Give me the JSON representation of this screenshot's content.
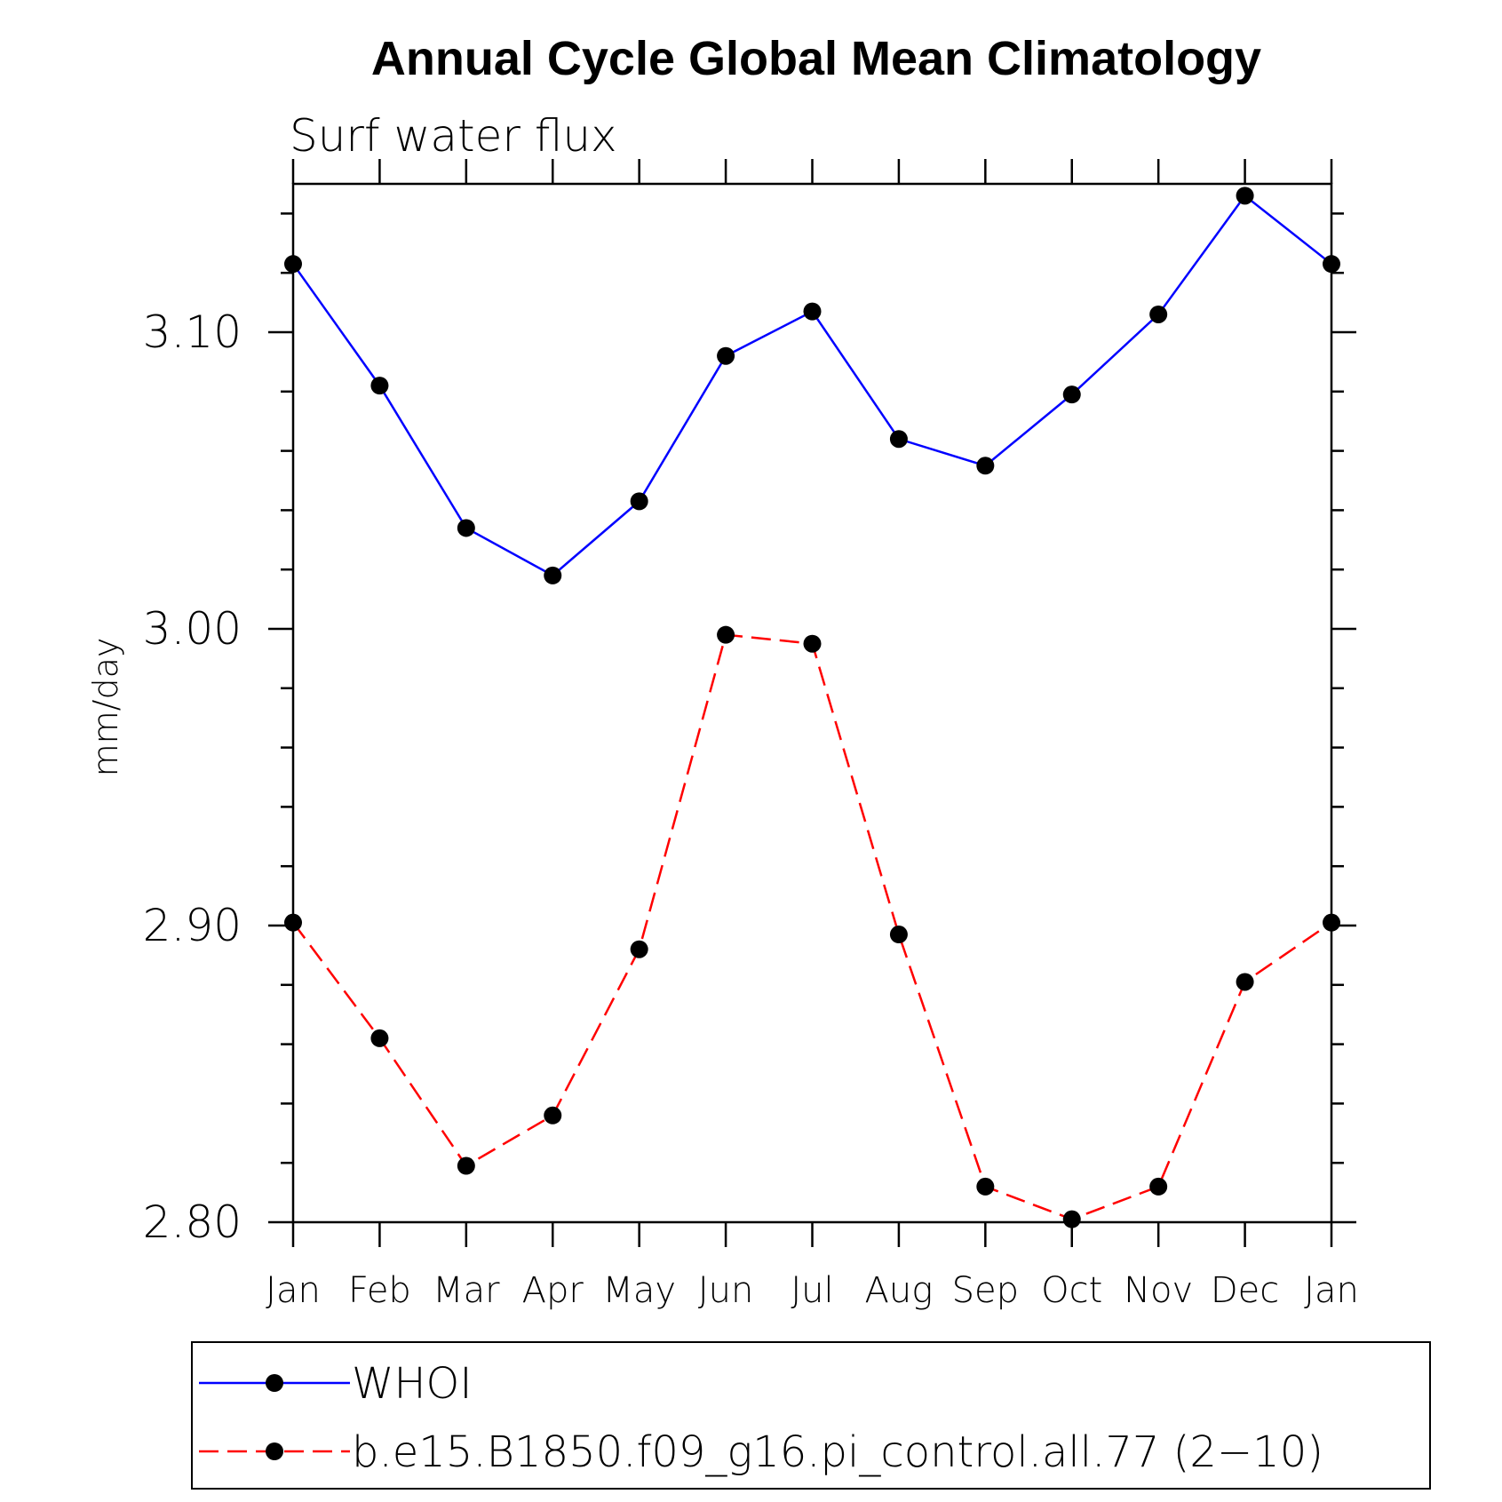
{
  "chart_data": {
    "type": "line",
    "title": "Annual Cycle Global Mean Climatology",
    "subtitle": "Surf water flux",
    "xlabel": "",
    "ylabel": "mm/day",
    "categories": [
      "Jan",
      "Feb",
      "Mar",
      "Apr",
      "May",
      "Jun",
      "Jul",
      "Aug",
      "Sep",
      "Oct",
      "Nov",
      "Dec",
      "Jan"
    ],
    "ylim": [
      2.8,
      3.15
    ],
    "yticks": [
      2.8,
      2.9,
      3.0,
      3.1
    ],
    "ytick_labels": [
      "2.80",
      "2.90",
      "3.00",
      "3.10"
    ],
    "series": [
      {
        "name": "WHOI",
        "color": "#0000ff",
        "style": "solid",
        "values": [
          3.123,
          3.082,
          3.034,
          3.018,
          3.043,
          3.092,
          3.107,
          3.064,
          3.055,
          3.079,
          3.106,
          3.146,
          3.123
        ]
      },
      {
        "name": "b.e15.B1850.f09_g16.pi_control.all.77 (2−10)",
        "color": "#ff0000",
        "style": "dashed",
        "values": [
          2.901,
          2.862,
          2.819,
          2.836,
          2.892,
          2.998,
          2.995,
          2.897,
          2.812,
          2.801,
          2.812,
          2.881,
          2.901
        ]
      }
    ],
    "legend_position": "bottom",
    "grid": false
  }
}
